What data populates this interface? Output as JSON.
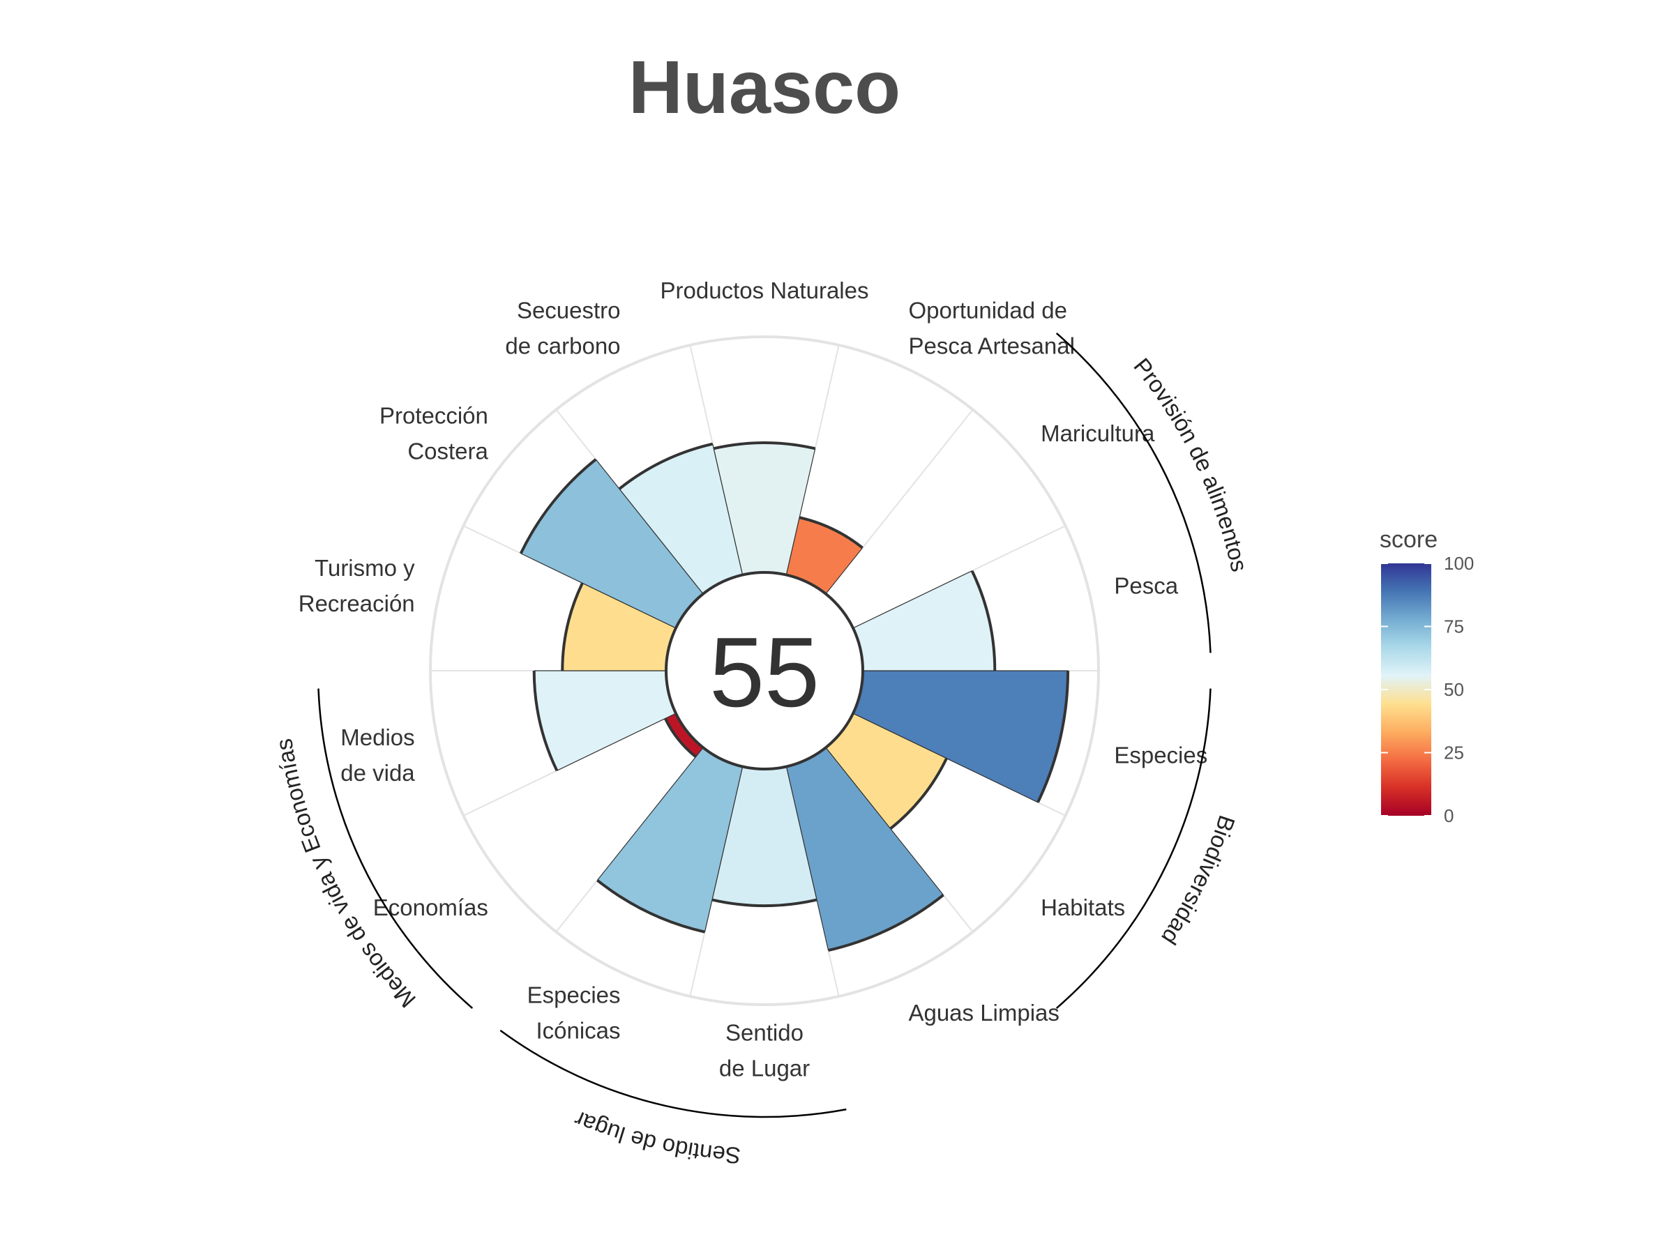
{
  "title": "Huasco",
  "center_score": "55",
  "legend": {
    "title": "score",
    "ticks": [
      "100",
      "75",
      "50",
      "25",
      "0"
    ]
  },
  "colors": {
    "scale": [
      "#a50026",
      "#d73027",
      "#f46d43",
      "#fdae61",
      "#fee090",
      "#e0f3f8",
      "#abd9e9",
      "#74add1",
      "#4575b4",
      "#313695"
    ],
    "ring": "#e3e3e3",
    "outline": "#333333"
  },
  "chart_data": {
    "type": "polar-bar",
    "max_score": 100,
    "start_category": "Especies",
    "direction": "clockwise",
    "categories": [
      {
        "name": "Especies",
        "label": [
          "Especies"
        ],
        "score": 87,
        "group": "Biodiversidad"
      },
      {
        "name": "Habitats",
        "label": [
          "Habitats"
        ],
        "score": 44,
        "group": "Biodiversidad"
      },
      {
        "name": "Aguas Limpias",
        "label": [
          "Aguas Limpias"
        ],
        "score": 80
      },
      {
        "name": "Sentido de Lugar",
        "label": [
          "Sentido",
          "de Lugar"
        ],
        "score": 58,
        "group": "Sentido de lugar"
      },
      {
        "name": "Especies Icónicas",
        "label": [
          "Especies",
          "Icónicas"
        ],
        "score": 72,
        "group": "Sentido de lugar"
      },
      {
        "name": "Economías",
        "label": [
          "Economías"
        ],
        "score": 5,
        "group": "Medios de vida y Economías"
      },
      {
        "name": "Medios de vida",
        "label": [
          "Medios",
          "de vida"
        ],
        "score": 56,
        "group": "Medios de vida y Economías"
      },
      {
        "name": "Turismo y Recreación",
        "label": [
          "Turismo y",
          "Recreación"
        ],
        "score": 44
      },
      {
        "name": "Protección Costera",
        "label": [
          "Protección",
          "Costera"
        ],
        "score": 73
      },
      {
        "name": "Secuestro de carbono",
        "label": [
          "Secuestro",
          "de carbono"
        ],
        "score": 57
      },
      {
        "name": "Productos Naturales",
        "label": [
          "Productos Naturales"
        ],
        "score": 55
      },
      {
        "name": "Oportunidad de Pesca Artesanal",
        "label": [
          "Oportunidad de",
          "Pesca Artesanal"
        ],
        "score": 25
      },
      {
        "name": "Maricultura",
        "label": [
          "Maricultura"
        ],
        "score": null,
        "group": "Provisión de alimentos"
      },
      {
        "name": "Pesca",
        "label": [
          "Pesca"
        ],
        "score": 56,
        "group": "Provisión de alimentos"
      }
    ],
    "groups": [
      {
        "name": "Provisión de alimentos",
        "categories": [
          "Maricultura",
          "Pesca"
        ]
      },
      {
        "name": "Biodiversidad",
        "categories": [
          "Especies",
          "Habitats"
        ]
      },
      {
        "name": "Sentido de lugar",
        "categories": [
          "Sentido de Lugar",
          "Especies Icónicas"
        ]
      },
      {
        "name": "Medios de vida y Economías",
        "categories": [
          "Economías",
          "Medios de vida"
        ]
      }
    ]
  }
}
